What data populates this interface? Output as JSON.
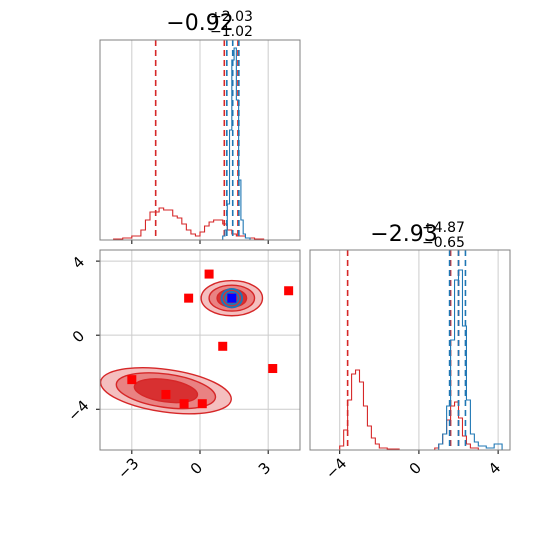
{
  "colors": {
    "red": "#d62728",
    "blue": "#1f77b4",
    "marker_red": "#ff0000",
    "marker_blue": "#0000ff",
    "grid": "#cccccc",
    "axes": "#808080"
  },
  "chart_data": [
    {
      "type": "histogram",
      "panel": "top-left",
      "title_value": "−0.92",
      "title_plus": "+2.03",
      "title_minus": "−1.02",
      "xlim": [
        -4.4,
        4.4
      ],
      "ylim": [
        0,
        1.0
      ],
      "xticks": [
        -3,
        0,
        3
      ],
      "grid": true,
      "series": [
        {
          "color": "#d62728",
          "x": [
            -4.2,
            -3.8,
            -3.4,
            -3.0,
            -2.6,
            -2.4,
            -2.2,
            -2.0,
            -1.8,
            -1.6,
            -1.4,
            -1.2,
            -1.0,
            -0.8,
            -0.6,
            -0.4,
            -0.2,
            0.0,
            0.2,
            0.4,
            0.6,
            0.8,
            1.0,
            1.2,
            1.4,
            1.6,
            1.8,
            2.0,
            2.4,
            2.8
          ],
          "values": [
            0.0,
            0.005,
            0.01,
            0.02,
            0.05,
            0.1,
            0.14,
            0.14,
            0.16,
            0.15,
            0.15,
            0.12,
            0.11,
            0.08,
            0.05,
            0.03,
            0.02,
            0.04,
            0.07,
            0.09,
            0.1,
            0.1,
            0.08,
            0.05,
            0.03,
            0.02,
            0.02,
            0.01,
            0.005,
            0.0
          ],
          "quantile_lines": [
            -1.95,
            1.07,
            1.67
          ]
        },
        {
          "color": "#1f77b4",
          "x": [
            0.8,
            1.0,
            1.1,
            1.2,
            1.3,
            1.4,
            1.5,
            1.6,
            1.7,
            1.8,
            1.9,
            2.0,
            2.2
          ],
          "values": [
            0.0,
            0.02,
            0.05,
            0.18,
            0.55,
            0.9,
            0.96,
            0.7,
            0.3,
            0.1,
            0.03,
            0.01,
            0.0
          ],
          "quantile_lines": [
            1.18,
            1.44,
            1.71
          ]
        }
      ]
    },
    {
      "type": "scatter-contour",
      "panel": "bottom-left",
      "xlim": [
        -4.4,
        4.4
      ],
      "ylim": [
        -6.2,
        4.6
      ],
      "xticks": [
        -3,
        0,
        3
      ],
      "yticks": [
        -4,
        0,
        4
      ],
      "grid": true,
      "red_squares": [
        {
          "x": 0.4,
          "y": 3.3
        },
        {
          "x": -0.5,
          "y": 2.0
        },
        {
          "x": 3.9,
          "y": 2.4
        },
        {
          "x": 1.0,
          "y": -0.6
        },
        {
          "x": 3.2,
          "y": -1.8
        },
        {
          "x": -3.0,
          "y": -2.4
        },
        {
          "x": -1.5,
          "y": -3.2
        },
        {
          "x": -0.7,
          "y": -3.7
        },
        {
          "x": 0.1,
          "y": -3.7
        }
      ],
      "blue_squares": [
        {
          "x": 1.4,
          "y": 2.0
        }
      ],
      "clusters": [
        {
          "x": 1.4,
          "y": 2.0,
          "label": "upper"
        },
        {
          "x": -1.5,
          "y": -3.0,
          "label": "lower"
        }
      ]
    },
    {
      "type": "histogram",
      "panel": "bottom-right",
      "title_value": "−2.93",
      "title_plus": "+4.87",
      "title_minus": "−0.65",
      "xlim": [
        -5.5,
        4.6
      ],
      "ylim": [
        0,
        1.0
      ],
      "xticks": [
        -4,
        0,
        4
      ],
      "grid": true,
      "series": [
        {
          "color": "#d62728",
          "x": [
            -4.4,
            -4.0,
            -3.8,
            -3.6,
            -3.4,
            -3.2,
            -3.0,
            -2.8,
            -2.6,
            -2.4,
            -2.2,
            -2.0,
            -1.6,
            -1.0,
            -0.4,
            0.2,
            0.8,
            1.0,
            1.2,
            1.4,
            1.6,
            1.8,
            2.0,
            2.2,
            2.4,
            2.6,
            3.0
          ],
          "values": [
            0.0,
            0.02,
            0.1,
            0.25,
            0.38,
            0.4,
            0.34,
            0.22,
            0.12,
            0.06,
            0.03,
            0.01,
            0.005,
            0.0,
            0.0,
            0.0,
            0.01,
            0.03,
            0.08,
            0.15,
            0.22,
            0.24,
            0.16,
            0.07,
            0.03,
            0.01,
            0.0
          ],
          "quantile_lines": [
            -3.6,
            1.6,
            2.0
          ]
        },
        {
          "color": "#1f77b4",
          "x": [
            0.8,
            1.0,
            1.2,
            1.4,
            1.6,
            1.8,
            2.0,
            2.2,
            2.4,
            2.6,
            2.8,
            3.0,
            3.4,
            3.8,
            4.2
          ],
          "values": [
            0.0,
            0.03,
            0.08,
            0.22,
            0.55,
            0.85,
            0.9,
            0.62,
            0.25,
            0.08,
            0.04,
            0.02,
            0.01,
            0.03,
            0.0
          ],
          "quantile_lines": [
            1.55,
            2.0,
            2.35
          ]
        }
      ]
    }
  ]
}
